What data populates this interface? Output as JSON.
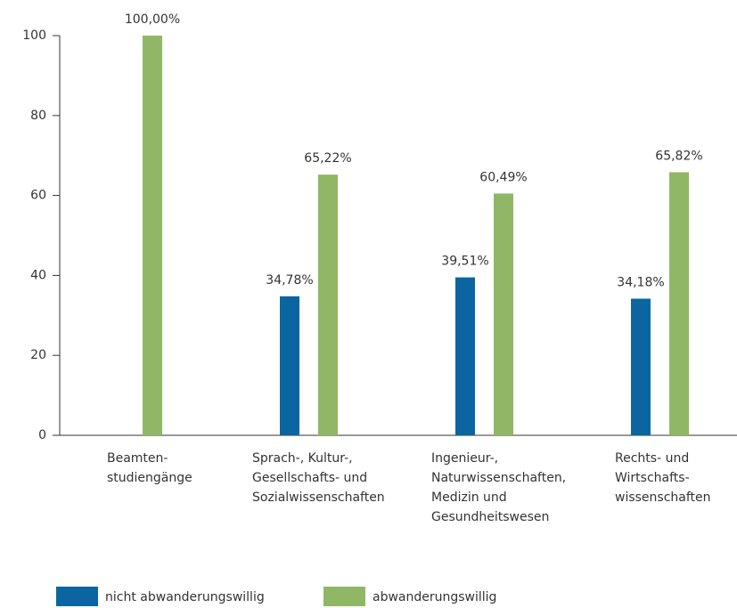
{
  "chart_data": {
    "type": "bar",
    "categories": [
      "Beamten-\nstudiengänge",
      "Sprach-, Kultur-,\nGesellschafts- und\nSozialwissenschaften",
      "Ingenieur-,\nNaturwissenschaften,\nMedizin und\nGesundheitswesen",
      "Rechts- und\nWirtschafts-\nwissenschaften"
    ],
    "series": [
      {
        "name": "nicht abwanderungswillig",
        "color": "#0b65a0",
        "values": [
          null,
          34.78,
          39.51,
          34.18
        ],
        "value_labels": [
          null,
          "34,78%",
          "39,51%",
          "34,18%"
        ]
      },
      {
        "name": "abwanderungswillig",
        "color": "#8fb765",
        "values": [
          100,
          65.22,
          60.49,
          65.82
        ],
        "value_labels": [
          "100,00%",
          "65,22%",
          "60,49%",
          "65,82%"
        ]
      }
    ],
    "ylim": [
      0,
      100
    ],
    "yticks": [
      0,
      20,
      40,
      60,
      80,
      100
    ],
    "grid": false
  }
}
